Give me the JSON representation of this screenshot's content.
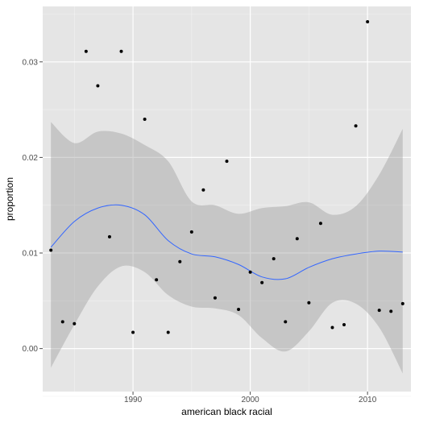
{
  "chart_data": {
    "type": "scatter",
    "xlabel": "american black racial",
    "ylabel": "proportion",
    "xlim": [
      1982.3,
      2013.7
    ],
    "ylim": [
      -0.0045,
      0.0358
    ],
    "xticks": [
      1990,
      2000,
      2010
    ],
    "yticks": [
      0.0,
      0.01,
      0.02,
      0.03
    ],
    "xtick_labels": [
      "1990",
      "2000",
      "2010"
    ],
    "ytick_labels": [
      "0.00",
      "0.01",
      "0.02",
      "0.03"
    ],
    "grid": true,
    "points": [
      {
        "x": 1983,
        "y": 0.0103
      },
      {
        "x": 1984,
        "y": 0.0028
      },
      {
        "x": 1985,
        "y": 0.0026
      },
      {
        "x": 1986,
        "y": 0.0311
      },
      {
        "x": 1987,
        "y": 0.0275
      },
      {
        "x": 1988,
        "y": 0.0117
      },
      {
        "x": 1989,
        "y": 0.0311
      },
      {
        "x": 1990,
        "y": 0.0017
      },
      {
        "x": 1991,
        "y": 0.024
      },
      {
        "x": 1992,
        "y": 0.0072
      },
      {
        "x": 1993,
        "y": 0.0017
      },
      {
        "x": 1994,
        "y": 0.0091
      },
      {
        "x": 1995,
        "y": 0.0122
      },
      {
        "x": 1996,
        "y": 0.0166
      },
      {
        "x": 1997,
        "y": 0.0053
      },
      {
        "x": 1998,
        "y": 0.0196
      },
      {
        "x": 1999,
        "y": 0.0041
      },
      {
        "x": 2000,
        "y": 0.008
      },
      {
        "x": 2001,
        "y": 0.0069
      },
      {
        "x": 2002,
        "y": 0.0094
      },
      {
        "x": 2003,
        "y": 0.0028
      },
      {
        "x": 2004,
        "y": 0.0115
      },
      {
        "x": 2005,
        "y": 0.0048
      },
      {
        "x": 2006,
        "y": 0.0131
      },
      {
        "x": 2007,
        "y": 0.0022
      },
      {
        "x": 2008,
        "y": 0.0025
      },
      {
        "x": 2009,
        "y": 0.0233
      },
      {
        "x": 2010,
        "y": 0.0342
      },
      {
        "x": 2011,
        "y": 0.004
      },
      {
        "x": 2012,
        "y": 0.0039
      },
      {
        "x": 2013,
        "y": 0.0047
      }
    ],
    "smooth": {
      "x": [
        1983,
        1985,
        1987,
        1989,
        1991,
        1993,
        1995,
        1997,
        1999,
        2001,
        2003,
        2005,
        2007,
        2009,
        2011,
        2013
      ],
      "y": [
        0.0106,
        0.0133,
        0.0147,
        0.015,
        0.014,
        0.0113,
        0.0099,
        0.0096,
        0.0088,
        0.0075,
        0.0073,
        0.0085,
        0.0094,
        0.0099,
        0.0102,
        0.0101
      ],
      "lo": [
        -0.002,
        0.0025,
        0.0065,
        0.0086,
        0.008,
        0.0056,
        0.0044,
        0.0042,
        0.0035,
        0.0011,
        -0.0003,
        0.0018,
        0.0048,
        0.0047,
        0.0022,
        -0.0026
      ],
      "hi": [
        0.0237,
        0.0215,
        0.0227,
        0.0225,
        0.0213,
        0.0196,
        0.0154,
        0.015,
        0.0141,
        0.0147,
        0.0149,
        0.0153,
        0.014,
        0.0149,
        0.0182,
        0.023
      ]
    },
    "colors": {
      "panel": "#e5e5e5",
      "grid_major": "#ffffff",
      "grid_minor": "#f2f2f2",
      "point": "#000000",
      "line": "#3366ff",
      "ribbon": "#999999",
      "tick": "#4d4d4d"
    }
  }
}
